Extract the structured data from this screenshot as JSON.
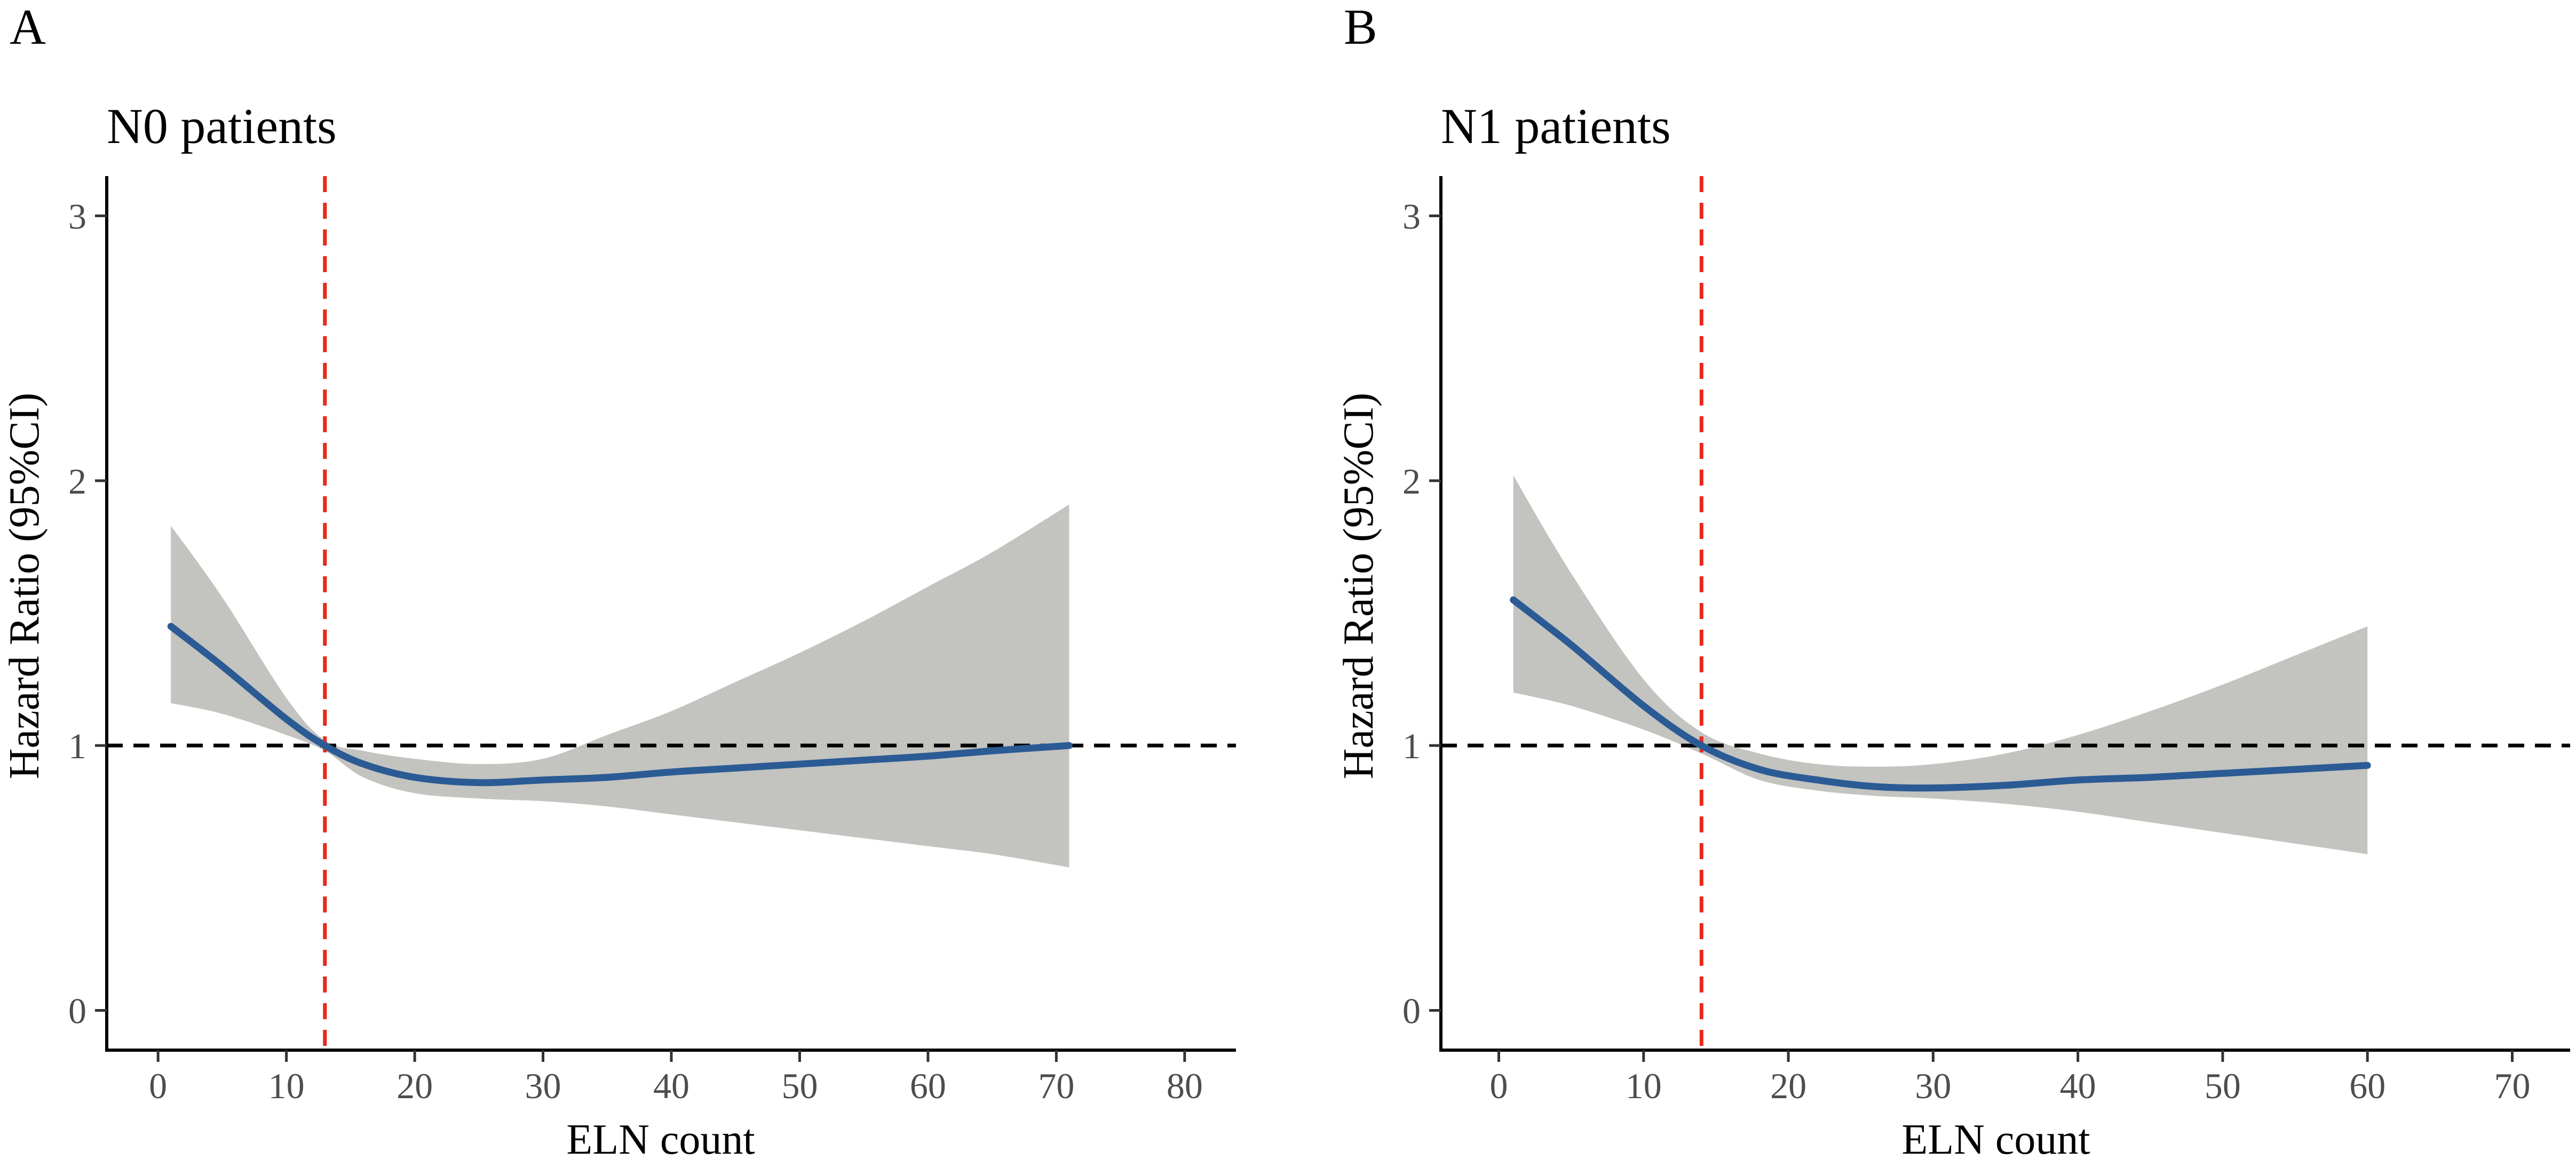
{
  "chart_data": [
    {
      "type": "line",
      "panel_label": "A",
      "title": "N0 patients",
      "xlabel": "ELN count",
      "ylabel": "Hazard Ratio (95%CI)",
      "xlim": [
        -4,
        84
      ],
      "ylim": [
        -0.15,
        3.15
      ],
      "xticks": [
        0,
        10,
        20,
        30,
        40,
        50,
        60,
        70,
        80
      ],
      "yticks": [
        0,
        1,
        2,
        3
      ],
      "xtick_labels": [
        "0",
        "10",
        "20",
        "30",
        "40",
        "50",
        "60",
        "70",
        "80"
      ],
      "ytick_labels": [
        "0",
        "1",
        "2",
        "3"
      ],
      "reference_line": {
        "y": 1,
        "style": "dashed",
        "color": "#000000"
      },
      "cutoff_line": {
        "x": 13,
        "style": "dashed",
        "color": "#e8291c"
      },
      "series": [
        {
          "name": "Hazard Ratio",
          "color": "#2b5b94",
          "x": [
            1,
            5,
            10,
            13,
            16,
            20,
            25,
            30,
            35,
            40,
            45,
            50,
            55,
            60,
            65,
            71
          ],
          "y": [
            1.45,
            1.3,
            1.1,
            1.0,
            0.93,
            0.88,
            0.86,
            0.87,
            0.88,
            0.9,
            0.915,
            0.93,
            0.945,
            0.96,
            0.98,
            1.0
          ],
          "lower": [
            1.16,
            1.12,
            1.04,
            0.98,
            0.88,
            0.82,
            0.8,
            0.79,
            0.77,
            0.74,
            0.71,
            0.68,
            0.65,
            0.62,
            0.59,
            0.54
          ],
          "upper": [
            1.83,
            1.56,
            1.18,
            1.02,
            0.98,
            0.95,
            0.93,
            0.95,
            1.04,
            1.13,
            1.24,
            1.35,
            1.47,
            1.6,
            1.73,
            1.91
          ]
        }
      ]
    },
    {
      "type": "line",
      "panel_label": "B",
      "title": "N1 patients",
      "xlabel": "ELN count",
      "ylabel": "Hazard Ratio (95%CI)",
      "xlim": [
        -4,
        74
      ],
      "ylim": [
        -0.15,
        3.15
      ],
      "xticks": [
        0,
        10,
        20,
        30,
        40,
        50,
        60,
        70
      ],
      "yticks": [
        0,
        1,
        2,
        3
      ],
      "xtick_labels": [
        "0",
        "10",
        "20",
        "30",
        "40",
        "50",
        "60",
        "70"
      ],
      "ytick_labels": [
        "0",
        "1",
        "2",
        "3"
      ],
      "reference_line": {
        "y": 1,
        "style": "dashed",
        "color": "#000000"
      },
      "cutoff_line": {
        "x": 14,
        "style": "dashed",
        "color": "#e8291c"
      },
      "series": [
        {
          "name": "Hazard Ratio",
          "color": "#2b5b94",
          "x": [
            1,
            5,
            10,
            14,
            18,
            22,
            26,
            30,
            35,
            40,
            45,
            50,
            55,
            60
          ],
          "y": [
            1.55,
            1.38,
            1.15,
            1.0,
            0.91,
            0.87,
            0.845,
            0.84,
            0.85,
            0.87,
            0.88,
            0.895,
            0.91,
            0.925
          ],
          "lower": [
            1.2,
            1.15,
            1.06,
            0.97,
            0.87,
            0.83,
            0.81,
            0.8,
            0.78,
            0.75,
            0.71,
            0.67,
            0.63,
            0.59
          ],
          "upper": [
            2.02,
            1.65,
            1.25,
            1.05,
            0.97,
            0.93,
            0.92,
            0.93,
            0.97,
            1.04,
            1.13,
            1.23,
            1.34,
            1.45
          ]
        }
      ]
    }
  ]
}
